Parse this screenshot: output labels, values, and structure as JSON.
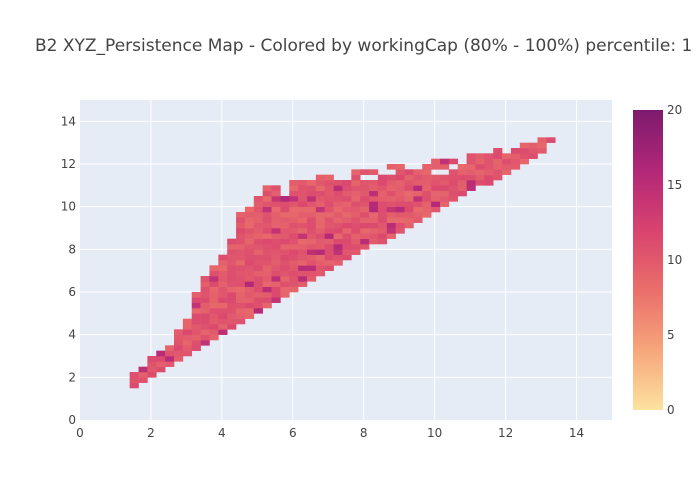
{
  "chart_data": {
    "type": "heatmap",
    "title": "B2 XYZ_Persistence Map - Colored by workingCap (80% - 100%) percentile: 1",
    "xlabel": "",
    "ylabel": "",
    "xlim": [
      0,
      15
    ],
    "ylim": [
      0,
      15
    ],
    "x_ticks": [
      "0",
      "2",
      "4",
      "6",
      "8",
      "10",
      "12",
      "14"
    ],
    "y_ticks": [
      "0",
      "2",
      "4",
      "6",
      "8",
      "10",
      "12",
      "14"
    ],
    "colorbar": {
      "min": 0,
      "max": 20,
      "ticks": [
        "0",
        "5",
        "10",
        "15",
        "20"
      ],
      "colorscale": [
        "#fde2a0",
        "#f6a57b",
        "#ea6e6a",
        "#d8436f",
        "#b22778",
        "#7d1a6e"
      ]
    },
    "bin_size": 0.25,
    "region": {
      "description_points_lower_edge": [
        [
          1.4,
          1.5
        ],
        [
          4.0,
          4.0
        ],
        [
          8.0,
          8.0
        ],
        [
          11.0,
          10.8
        ],
        [
          12.5,
          12.0
        ],
        [
          13.2,
          12.8
        ]
      ],
      "description_points_upper_edge": [
        [
          1.4,
          1.9
        ],
        [
          2.6,
          3.6
        ],
        [
          3.0,
          4.6
        ],
        [
          3.4,
          6.3
        ],
        [
          4.0,
          7.5
        ],
        [
          4.4,
          8.7
        ],
        [
          4.6,
          10.0
        ],
        [
          5.2,
          10.8
        ],
        [
          6.4,
          11.2
        ],
        [
          8.5,
          11.7
        ],
        [
          10.0,
          12.0
        ],
        [
          11.5,
          12.4
        ],
        [
          12.5,
          12.8
        ],
        [
          13.2,
          13.3
        ]
      ],
      "typical_value": 10,
      "hot_value": 16
    },
    "grid": true,
    "background": "#e5ecf6"
  }
}
